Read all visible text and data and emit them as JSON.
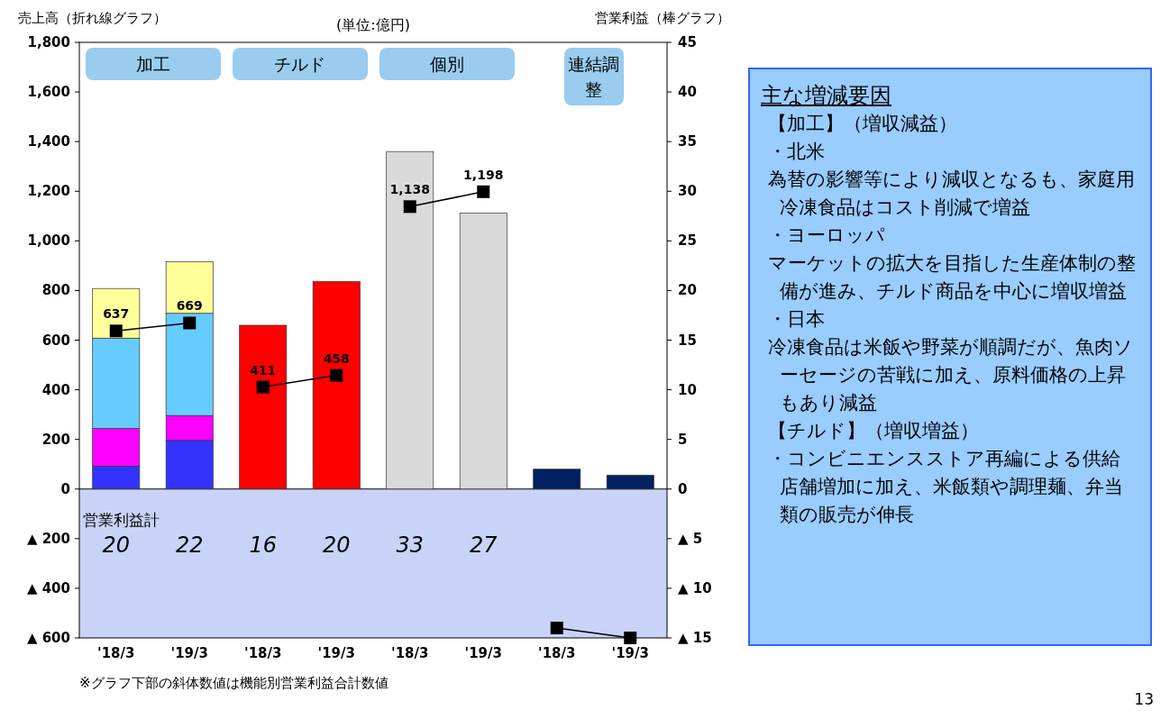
{
  "chart_data": [
    {
      "type": "bar",
      "title": "(単位:億円)",
      "ylabel": "売上高（折れ線グラフ）",
      "y2label": "営業利益（棒グラフ）",
      "categories": [
        "'18/3",
        "'19/3",
        "'18/3",
        "'19/3",
        "'18/3",
        "'19/3",
        "'18/3",
        "'19/3"
      ],
      "stacked": true,
      "series": [
        {
          "type": "bar",
          "axis": "y2",
          "colors": [
            "#3333ff",
            "#3333ff",
            "#ff0000",
            "#ff0000",
            "#d9d9d9",
            "#d9d9d9",
            "#002060",
            "#002060"
          ],
          "values": [
            2.3,
            4.9,
            16.5,
            20.9,
            34,
            27.8,
            2,
            1.4
          ]
        },
        {
          "type": "bar",
          "axis": "y2",
          "colors": [
            "#ff00ff",
            "#ff00ff",
            null,
            null,
            null,
            null,
            null,
            null
          ],
          "values": [
            3.8,
            2.5,
            null,
            null,
            null,
            null,
            null,
            null
          ]
        },
        {
          "type": "bar",
          "axis": "y2",
          "colors": [
            "#66ccff",
            "#66ccff",
            null,
            null,
            null,
            null,
            null,
            null
          ],
          "values": [
            9.1,
            10.3,
            null,
            null,
            null,
            null,
            null,
            null
          ]
        },
        {
          "type": "bar",
          "axis": "y2",
          "colors": [
            "#ffff99",
            "#ffff99",
            null,
            null,
            null,
            null,
            null,
            null
          ],
          "values": [
            5,
            5.2,
            null,
            null,
            null,
            null,
            null,
            null
          ]
        },
        {
          "type": "line",
          "color": "#000000",
          "marker": "square",
          "values": [
            637,
            669,
            null,
            null,
            null,
            null,
            null,
            null
          ],
          "value_labels": [
            "637",
            "669",
            null,
            null,
            null,
            null,
            null,
            null
          ]
        },
        {
          "type": "line",
          "color": "#000000",
          "marker": "square",
          "values": [
            null,
            null,
            411,
            458,
            null,
            null,
            null,
            null
          ],
          "value_labels": [
            null,
            null,
            "411",
            "458",
            null,
            null,
            null,
            null
          ]
        },
        {
          "type": "line",
          "color": "#000000",
          "marker": "square",
          "values": [
            null,
            null,
            null,
            null,
            1138,
            1198,
            null,
            null
          ],
          "value_labels": [
            null,
            null,
            null,
            null,
            "1,138",
            "1,198",
            null,
            null
          ]
        },
        {
          "type": "line",
          "color": "#000000",
          "marker": "square",
          "values": [
            null,
            null,
            null,
            null,
            null,
            null,
            -560,
            -600
          ]
        }
      ],
      "totals": [
        "20",
        "22",
        "16",
        "20",
        "33",
        "27",
        null,
        null
      ],
      "ylim": [
        -600,
        1800
      ],
      "yticks": [
        {
          "value": -600,
          "label": "▲ 600"
        },
        {
          "value": -400,
          "label": "▲ 400"
        },
        {
          "value": -200,
          "label": "▲ 200"
        },
        0,
        {
          "value": 200,
          "label": "200"
        },
        {
          "value": 400,
          "label": "400"
        },
        {
          "value": 600,
          "label": "600"
        },
        {
          "value": 800,
          "label": "800"
        },
        {
          "value": 1000,
          "label": "1,000"
        },
        {
          "value": 1200,
          "label": "1,200"
        },
        {
          "value": 1400,
          "label": "1,400"
        },
        {
          "value": 1600,
          "label": "1,600"
        },
        {
          "value": 1800,
          "label": "1,800"
        }
      ],
      "y2lim": [
        -15,
        45
      ],
      "y2ticks": [
        {
          "value": -15,
          "label": "▲ 15"
        },
        {
          "value": -10,
          "label": "▲ 10"
        },
        {
          "value": -5,
          "label": "▲ 5"
        },
        0,
        5,
        10,
        15,
        20,
        25,
        30,
        35,
        40,
        45
      ],
      "bands": [
        {
          "axis": "y",
          "from": -600,
          "to": 0,
          "color": "#c9d3f7"
        }
      ],
      "annotations": [
        "加工",
        "チルド",
        "個別",
        "連結調整",
        "営業利益計",
        "※グラフ下部の斜体数値は機能別営業利益合計数値",
        "13"
      ]
    },
    {
      "type": "other",
      "title": "主な増減要因",
      "annotations": [
        "【加工】（増収減益）",
        "・北米",
        "為替の影響等により減収となるも、家庭用冷凍食品はコスト削減で増益",
        "・ヨーロッパ",
        "マーケットの拡大を目指した生産体制の整備が進み、チルド商品を中心に増収増益",
        "・日本",
        "冷凍食品は米飯や野菜が順調だが、魚肉ソーセージの苦戦に加え、原料価格の上昇もあり減益",
        "【チルド】（増収増益）",
        "・コンビニエンスストア再編による供給店舗増加に加え、米飯類や調理麺、弁当類の販売が伸長"
      ]
    }
  ]
}
